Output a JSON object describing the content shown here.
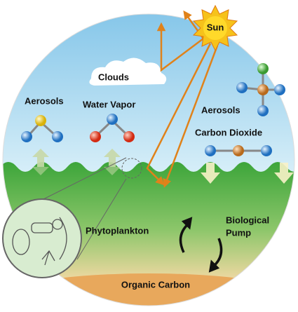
{
  "labels": {
    "sun": "Sun",
    "clouds": "Clouds",
    "aerosols_left": "Aerosols",
    "water_vapor": "Water Vapor",
    "aerosols_right": "Aerosols",
    "carbon_dioxide": "Carbon Dioxide",
    "phytoplankton": "Phytoplankton",
    "biological_pump": [
      "Biological",
      "Pump"
    ],
    "organic_carbon": "Organic Carbon"
  }
}
